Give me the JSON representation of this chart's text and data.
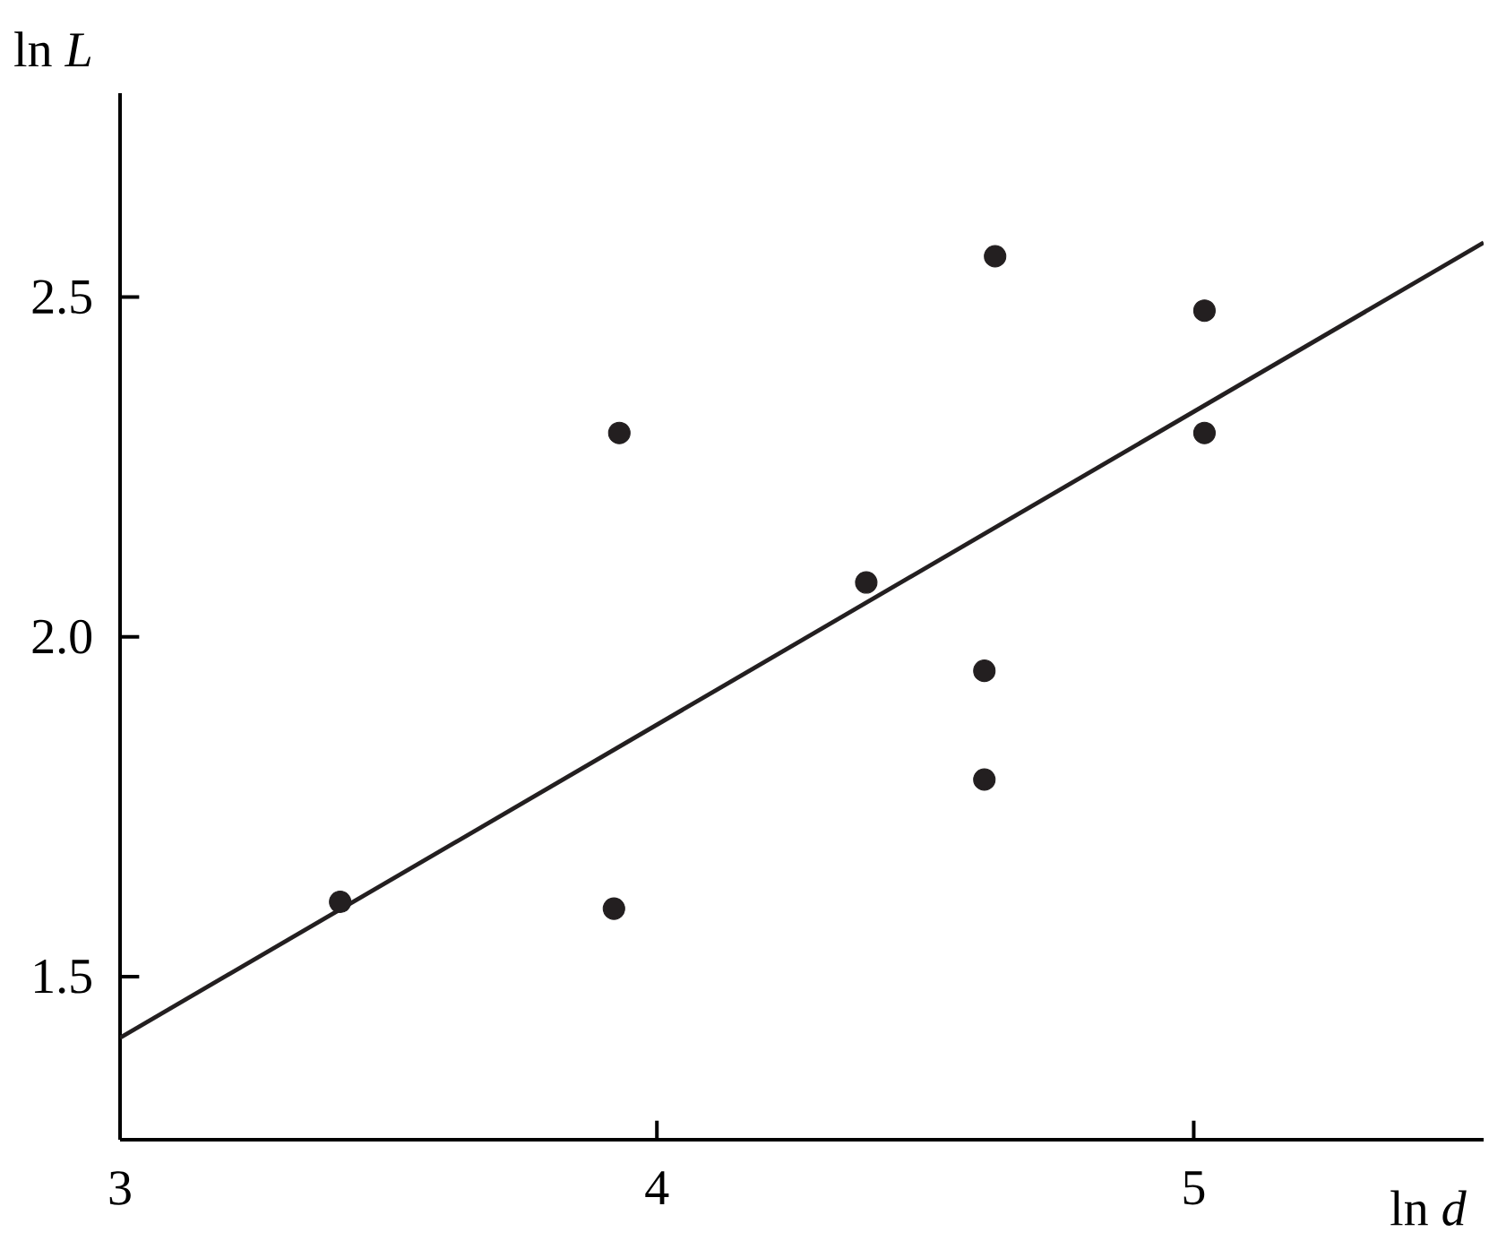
{
  "chart_data": {
    "type": "scatter",
    "xlabel": "ln *d*",
    "ylabel": "ln *L*",
    "xlim": [
      3,
      5.54
    ],
    "ylim": [
      1.26,
      2.8
    ],
    "xticks": [
      3,
      4,
      5
    ],
    "yticks": [
      1.5,
      {
        "value": 2.0,
        "label": "2.0"
      },
      2.5
    ],
    "grid": false,
    "series": [
      {
        "marker": "circle",
        "color": "#231f20",
        "x": [
          3.41,
          3.93,
          3.92,
          4.39,
          4.63,
          4.61,
          4.61,
          5.02,
          5.02
        ],
        "values": [
          1.61,
          2.3,
          1.6,
          2.08,
          2.56,
          1.95,
          1.79,
          2.48,
          2.3
        ]
      },
      {
        "type": "line",
        "marker": "none",
        "color": "#231f20",
        "line_style": "solid",
        "x": [
          3,
          5.54
        ],
        "values": [
          1.41,
          2.58
        ]
      }
    ]
  }
}
